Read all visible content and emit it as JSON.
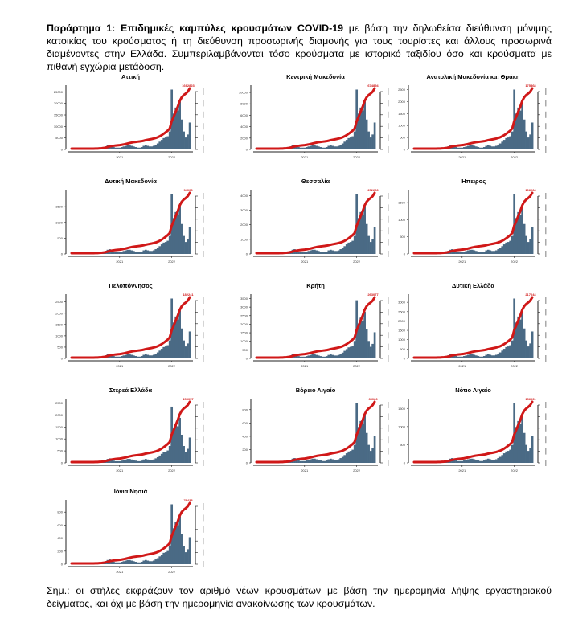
{
  "header": {
    "bold": "Παράρτημα 1:  Επιδημικές καμπύλες κρουσμάτων COVID-19",
    "text": " με βάση την δηλωθείσα διεύθυνση μόνιμης κατοικίας του κρούσματος ή τη διεύθυνση προσωρινής διαμονής για τους τουρίστες και άλλους προσωρινά διαμένοντες στην Ελλάδα. Συμπεριλαμβάνονται τόσο κρούσματα με ιστορικό ταξιδίου όσο και κρούσματα με πιθανή εγχώρια μετάδοση."
  },
  "note": "Σημ.: οι στήλες εκφράζουν τον αριθμό νέων κρουσμάτων με βάση την ημερομηνία λήψης εργαστηριακού δείγματος, και όχι με βάση την ημερομηνία ανακοίνωσης των κρουσμάτων.",
  "colors": {
    "bars": "#4a6a85",
    "cumulative": "#d01818"
  },
  "chart_data": {
    "type": "bar+line",
    "x_tick_labels": [
      "2021",
      "2022"
    ],
    "shared_shape_note": "relative daily-case profile shared across regions",
    "shape": [
      0,
      0,
      0,
      0,
      0,
      0,
      0,
      0,
      0,
      0,
      0,
      0,
      0.01,
      0.01,
      0.02,
      0.02,
      0.03,
      0.05,
      0.07,
      0.08,
      0.06,
      0.04,
      0.03,
      0.03,
      0.03,
      0.04,
      0.05,
      0.06,
      0.07,
      0.07,
      0.06,
      0.05,
      0.04,
      0.03,
      0.03,
      0.04,
      0.06,
      0.07,
      0.06,
      0.05,
      0.05,
      0.06,
      0.08,
      0.1,
      0.13,
      0.16,
      0.19,
      0.2,
      0.22,
      0.3,
      1.0,
      0.6,
      0.7,
      0.65,
      0.8,
      0.5,
      0.3,
      0.2,
      0.25,
      0.45
    ],
    "charts": [
      {
        "title": "Αττική",
        "peak": 26000,
        "yticks": [
          0,
          5000,
          10000,
          15000,
          20000,
          25000
        ],
        "final_label": "1662823"
      },
      {
        "title": "Κεντρική Μακεδονία",
        "peak": 10500,
        "yticks": [
          0,
          2000,
          4000,
          6000,
          8000,
          10000
        ],
        "final_label": "674894"
      },
      {
        "title": "Ανατολική Μακεδονία και Θράκη",
        "peak": 2500,
        "yticks": [
          0,
          500,
          1000,
          1500,
          2000,
          2500
        ],
        "final_label": "175868"
      },
      {
        "title": "Δυτική Μακεδονία",
        "peak": 1900,
        "yticks": [
          0,
          500,
          1000,
          1500
        ],
        "final_label": "94006"
      },
      {
        "title": "Θεσσαλία",
        "peak": 4100,
        "yticks": [
          0,
          1000,
          2000,
          3000,
          4000
        ],
        "final_label": "252206"
      },
      {
        "title": "Ήπειρος",
        "peak": 1750,
        "yticks": [
          0,
          500,
          1000,
          1500
        ],
        "final_label": "106264"
      },
      {
        "title": "Πελοπόννησος",
        "peak": 2650,
        "yticks": [
          0,
          500,
          1000,
          1500,
          2000,
          2500
        ],
        "final_label": "182241"
      },
      {
        "title": "Κρήτη",
        "peak": 3400,
        "yticks": [
          0,
          500,
          1000,
          1500,
          2000,
          2500,
          3000,
          3500
        ],
        "final_label": "263077"
      },
      {
        "title": "Δυτική Ελλάδα",
        "peak": 3200,
        "yticks": [
          0,
          500,
          1000,
          1500,
          2000,
          2500,
          3000
        ],
        "final_label": "217044"
      },
      {
        "title": "Στερεά Ελλάδα",
        "peak": 2350,
        "yticks": [
          0,
          500,
          1000,
          1500,
          2000,
          2500
        ],
        "final_label": "156057"
      },
      {
        "title": "Βόρειο Αιγαίο",
        "peak": 900,
        "yticks": [
          0,
          200,
          400,
          600,
          800
        ],
        "final_label": "65026"
      },
      {
        "title": "Νότιο Αιγαίο",
        "peak": 1650,
        "yticks": [
          0,
          500,
          1000,
          1500
        ],
        "final_label": "156031"
      },
      {
        "title": "Ιόνια Νησιά",
        "peak": 920,
        "yticks": [
          0,
          200,
          400,
          600,
          800
        ],
        "final_label": "76438"
      }
    ]
  }
}
